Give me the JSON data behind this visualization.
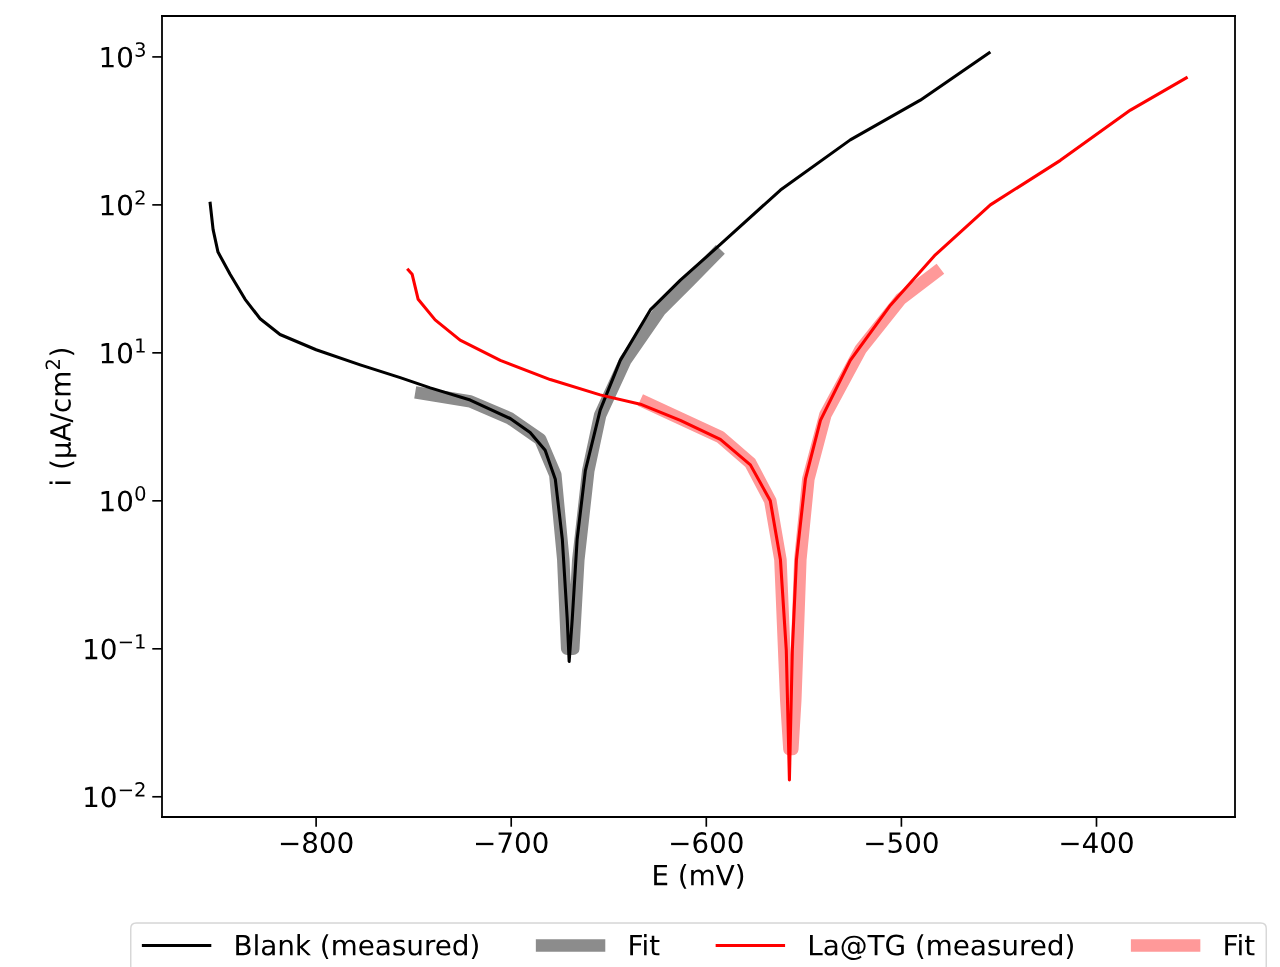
{
  "chart_data": {
    "type": "line",
    "xlabel": "E (mV)",
    "ylabel": "i (µA/cm$^{2}$)",
    "log": "y",
    "grid": false,
    "legend": "bottom",
    "marker": "none",
    "line_style": "solid",
    "xlim": [
      -879,
      -329
    ],
    "ylim": [
      0.0073,
      1890
    ],
    "xticks": [
      {
        "value": -800,
        "label": "−800"
      },
      {
        "value": -700,
        "label": "−700"
      },
      {
        "value": -600,
        "label": "−600"
      },
      {
        "value": -500,
        "label": "−500"
      },
      {
        "value": -400,
        "label": "−400"
      }
    ],
    "yticks": [
      {
        "value": 0.01,
        "label": "10$^{−2}$"
      },
      {
        "value": 0.1,
        "label": "10$^{−1}$"
      },
      {
        "value": 1,
        "label": "10$^{0}$"
      },
      {
        "value": 10,
        "label": "10$^{1}$"
      },
      {
        "value": 100,
        "label": "10$^{2}$"
      },
      {
        "value": 1000,
        "label": "10$^{3}$"
      }
    ],
    "series": [
      {
        "name": "Blank (measured)",
        "color": "#000000",
        "x": [
          -854.4,
          -852.8,
          -850.3,
          -844.1,
          -836.4,
          -828.7,
          -818.5,
          -800,
          -777.4,
          -756.9,
          -741.5,
          -721,
          -700.5,
          -690.3,
          -682.6,
          -677.4,
          -673.8,
          -671.3,
          -670.3,
          -668.7,
          -666.2,
          -662,
          -654.4,
          -644.1,
          -628.7,
          -613.3,
          -592.8,
          -562,
          -526.2,
          -490.3,
          -454.4
        ],
        "values": [
          105,
          68,
          48,
          34,
          23,
          17,
          13.3,
          10.5,
          8.3,
          6.8,
          5.8,
          4.8,
          3.6,
          2.9,
          2.2,
          1.4,
          0.55,
          0.16,
          0.082,
          0.16,
          0.55,
          1.6,
          4.1,
          8.9,
          19.5,
          31,
          54,
          126,
          275,
          510,
          1080
        ]
      },
      {
        "name": "Fit",
        "color": "#8c8c8c",
        "x": [
          -749.2,
          -721,
          -700.5,
          -685.1,
          -677.4,
          -673.3,
          -671.3,
          -668.2,
          -665.6,
          -660.5,
          -654.4,
          -641.5,
          -623.6,
          -608.2,
          -592.8
        ],
        "values": [
          5.4,
          4.7,
          3.6,
          2.6,
          1.5,
          0.4,
          0.1,
          0.1,
          0.4,
          1.6,
          3.8,
          8.9,
          19.5,
          31,
          50
        ]
      },
      {
        "name": "La@TG (measured)",
        "color": "#ff0000",
        "x": [
          -753.3,
          -750.8,
          -747.7,
          -739,
          -726.2,
          -705.6,
          -680,
          -654.4,
          -633.8,
          -613.3,
          -592.8,
          -577.4,
          -567.2,
          -562,
          -559,
          -557.4,
          -555.9,
          -553.8,
          -549.2,
          -541.5,
          -526.2,
          -505.6,
          -482.6,
          -454.4,
          -418.5,
          -382.6,
          -353.3
        ],
        "values": [
          37,
          34,
          23,
          16.7,
          12.2,
          8.9,
          6.6,
          5.2,
          4.5,
          3.5,
          2.6,
          1.75,
          1.0,
          0.4,
          0.098,
          0.013,
          0.098,
          0.4,
          1.4,
          3.5,
          8.9,
          21,
          46,
          100,
          200,
          437,
          730
        ]
      },
      {
        "name": "Fit",
        "color": "#ff9999",
        "x": [
          -633.8,
          -613.3,
          -592.8,
          -577.4,
          -567.2,
          -562,
          -559,
          -557.4,
          -555.9,
          -554.4,
          -551.8,
          -547.7,
          -539,
          -521,
          -500.5,
          -480
        ],
        "values": [
          4.8,
          3.6,
          2.7,
          1.8,
          1.0,
          0.4,
          0.045,
          0.021,
          0.021,
          0.045,
          0.4,
          1.4,
          3.8,
          10.5,
          23,
          37
        ]
      }
    ]
  }
}
